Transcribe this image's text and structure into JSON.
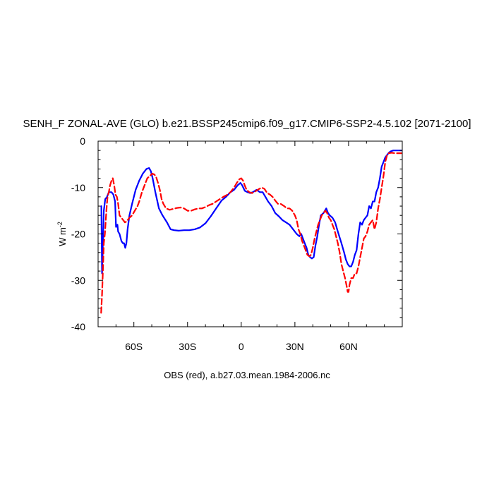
{
  "chart_data": {
    "type": "line",
    "title": "SENH_F ZONAL-AVE (GLO) b.e21.BSSP245cmip6.f09_g17.CMIP6-SSP2-4.5.102 [2071-2100]",
    "xlabel": "OBS (red), a.b27.03.mean.1984-2006.nc",
    "ylabel": "W m",
    "ylabel_sup": "-2",
    "xlim": [
      -80,
      90
    ],
    "ylim": [
      -40,
      0
    ],
    "xticks": [
      {
        "value": -60,
        "label": "60S"
      },
      {
        "value": -30,
        "label": "30S"
      },
      {
        "value": 0,
        "label": "0"
      },
      {
        "value": 30,
        "label": "30N"
      },
      {
        "value": 60,
        "label": "60N"
      }
    ],
    "yticks": [
      {
        "value": 0,
        "label": "0"
      },
      {
        "value": -10,
        "label": "-10"
      },
      {
        "value": -20,
        "label": "-20"
      },
      {
        "value": -30,
        "label": "-30"
      },
      {
        "value": -40,
        "label": "-40"
      }
    ],
    "grid": false,
    "series": [
      {
        "color": "#0000ff",
        "style": "solid",
        "points": [
          [
            -78.2,
            -14
          ],
          [
            -77.8,
            -28.5
          ],
          [
            -77.2,
            -20
          ],
          [
            -76.8,
            -15
          ],
          [
            -76,
            -12.5
          ],
          [
            -75,
            -12
          ],
          [
            -74,
            -11
          ],
          [
            -72.5,
            -11
          ],
          [
            -71.5,
            -11.5
          ],
          [
            -70.5,
            -13
          ],
          [
            -70,
            -18.5
          ],
          [
            -69.2,
            -18
          ],
          [
            -68.8,
            -19.5
          ],
          [
            -68,
            -20
          ],
          [
            -67,
            -21.5
          ],
          [
            -66.2,
            -22
          ],
          [
            -65.5,
            -22
          ],
          [
            -64.8,
            -23
          ],
          [
            -64.2,
            -22
          ],
          [
            -63.5,
            -19
          ],
          [
            -62.5,
            -16
          ],
          [
            -61,
            -13.5
          ],
          [
            -59,
            -10.5
          ],
          [
            -57,
            -8.5
          ],
          [
            -55,
            -7
          ],
          [
            -53,
            -6
          ],
          [
            -51.5,
            -5.8
          ],
          [
            -50.5,
            -6.5
          ],
          [
            -49.5,
            -8
          ],
          [
            -48,
            -11
          ],
          [
            -46,
            -14.5
          ],
          [
            -44,
            -16
          ],
          [
            -41.5,
            -17.5
          ],
          [
            -39.5,
            -19
          ],
          [
            -37.5,
            -19.2
          ],
          [
            -35,
            -19.3
          ],
          [
            -32,
            -19.2
          ],
          [
            -29,
            -19.2
          ],
          [
            -26,
            -19
          ],
          [
            -23,
            -18.6
          ],
          [
            -20,
            -17.7
          ],
          [
            -17,
            -16.2
          ],
          [
            -14,
            -14.5
          ],
          [
            -11,
            -12.8
          ],
          [
            -8.5,
            -12
          ],
          [
            -6,
            -11
          ],
          [
            -4,
            -10.5
          ],
          [
            -2,
            -9.5
          ],
          [
            -0.5,
            -9
          ],
          [
            0.5,
            -9.5
          ],
          [
            2,
            -10.7
          ],
          [
            3.5,
            -11
          ],
          [
            5,
            -11.2
          ],
          [
            6.5,
            -11
          ],
          [
            8.5,
            -10.5
          ],
          [
            10.5,
            -11
          ],
          [
            12,
            -11
          ],
          [
            13.5,
            -12
          ],
          [
            15,
            -13
          ],
          [
            17,
            -14
          ],
          [
            19,
            -15.5
          ],
          [
            21,
            -16.2
          ],
          [
            23,
            -17
          ],
          [
            25,
            -17.5
          ],
          [
            27,
            -18
          ],
          [
            29,
            -19
          ],
          [
            31,
            -20
          ],
          [
            32.5,
            -20.5
          ],
          [
            33.5,
            -20
          ],
          [
            34.5,
            -21
          ],
          [
            35.5,
            -22
          ],
          [
            36.5,
            -23
          ],
          [
            37.5,
            -24.5
          ],
          [
            38.5,
            -25
          ],
          [
            39.5,
            -25.3
          ],
          [
            40.5,
            -25
          ],
          [
            41.5,
            -22.5
          ],
          [
            42.5,
            -20.5
          ],
          [
            43.5,
            -18
          ],
          [
            44.5,
            -16
          ],
          [
            46,
            -15.5
          ],
          [
            47.5,
            -14.5
          ],
          [
            48.5,
            -15.5
          ],
          [
            49.5,
            -16
          ],
          [
            51,
            -16.5
          ],
          [
            52.5,
            -17.5
          ],
          [
            54,
            -19.5
          ],
          [
            56,
            -22
          ],
          [
            57.5,
            -24
          ],
          [
            58.5,
            -25.5
          ],
          [
            59.5,
            -26.5
          ],
          [
            60.5,
            -27
          ],
          [
            61.5,
            -27
          ],
          [
            62.5,
            -26
          ],
          [
            63.5,
            -24.5
          ],
          [
            64.5,
            -23.5
          ],
          [
            65.5,
            -20
          ],
          [
            66.5,
            -17.5
          ],
          [
            67.5,
            -18
          ],
          [
            68.5,
            -17
          ],
          [
            69.5,
            -16.5
          ],
          [
            70.5,
            -16
          ],
          [
            71.5,
            -14
          ],
          [
            72.5,
            -14.5
          ],
          [
            73.5,
            -13
          ],
          [
            74.5,
            -13
          ],
          [
            75.5,
            -11
          ],
          [
            76.5,
            -10
          ],
          [
            77.5,
            -8
          ],
          [
            78.5,
            -5.5
          ],
          [
            79.5,
            -4.5
          ],
          [
            80.5,
            -3.5
          ],
          [
            81.5,
            -3
          ],
          [
            82.5,
            -2.5
          ],
          [
            83.5,
            -2.2
          ],
          [
            85,
            -2
          ],
          [
            87,
            -2
          ],
          [
            89.5,
            -2
          ]
        ]
      },
      {
        "color": "#ff0000",
        "style": "dashed",
        "points": [
          [
            -78.3,
            -37
          ],
          [
            -77.8,
            -33
          ],
          [
            -77.3,
            -28
          ],
          [
            -76.8,
            -22
          ],
          [
            -76.2,
            -20
          ],
          [
            -75.7,
            -17
          ],
          [
            -75.2,
            -14
          ],
          [
            -74.7,
            -12
          ],
          [
            -74,
            -11
          ],
          [
            -73.3,
            -9.5
          ],
          [
            -72.5,
            -8.5
          ],
          [
            -71.8,
            -8
          ],
          [
            -71,
            -9.5
          ],
          [
            -70.3,
            -11.5
          ],
          [
            -69.5,
            -12
          ],
          [
            -68.8,
            -13.5
          ],
          [
            -68,
            -16
          ],
          [
            -67,
            -16.5
          ],
          [
            -66,
            -17
          ],
          [
            -65,
            -17.5
          ],
          [
            -64,
            -17.3
          ],
          [
            -62.5,
            -16.5
          ],
          [
            -61,
            -16
          ],
          [
            -59.5,
            -15
          ],
          [
            -58,
            -14
          ],
          [
            -57,
            -13
          ],
          [
            -55.5,
            -11
          ],
          [
            -54,
            -9.5
          ],
          [
            -52.5,
            -8
          ],
          [
            -51,
            -7.5
          ],
          [
            -49.8,
            -7
          ],
          [
            -48.5,
            -7.2
          ],
          [
            -47.5,
            -7.8
          ],
          [
            -46.5,
            -9
          ],
          [
            -45.5,
            -10.5
          ],
          [
            -44.5,
            -12.5
          ],
          [
            -43.5,
            -13.5
          ],
          [
            -42,
            -14.5
          ],
          [
            -40,
            -14.8
          ],
          [
            -38,
            -14.6
          ],
          [
            -36,
            -14.4
          ],
          [
            -34,
            -14.3
          ],
          [
            -32,
            -14.5
          ],
          [
            -30,
            -15
          ],
          [
            -28,
            -15
          ],
          [
            -26,
            -14.7
          ],
          [
            -24,
            -14.5
          ],
          [
            -22,
            -14.5
          ],
          [
            -20,
            -14.2
          ],
          [
            -18,
            -13.8
          ],
          [
            -16,
            -13.5
          ],
          [
            -14,
            -13
          ],
          [
            -12,
            -12.5
          ],
          [
            -10,
            -12
          ],
          [
            -8,
            -11.6
          ],
          [
            -6,
            -11
          ],
          [
            -4,
            -10
          ],
          [
            -2.5,
            -9
          ],
          [
            -1,
            -8.2
          ],
          [
            0,
            -8
          ],
          [
            1,
            -8.5
          ],
          [
            2,
            -9.6
          ],
          [
            3,
            -10.5
          ],
          [
            4.5,
            -11
          ],
          [
            6,
            -11.2
          ],
          [
            8,
            -10.8
          ],
          [
            10,
            -10.3
          ],
          [
            11.5,
            -10
          ],
          [
            13,
            -10.3
          ],
          [
            14.5,
            -11.2
          ],
          [
            16,
            -11.5
          ],
          [
            17.5,
            -12
          ],
          [
            19,
            -12.8
          ],
          [
            20.5,
            -13.5
          ],
          [
            22,
            -13.5
          ],
          [
            24,
            -14
          ],
          [
            25.5,
            -14.5
          ],
          [
            27,
            -14.5
          ],
          [
            28.5,
            -15
          ],
          [
            30,
            -16
          ],
          [
            31,
            -17
          ],
          [
            32,
            -19
          ],
          [
            33,
            -20
          ],
          [
            34,
            -21.5
          ],
          [
            35,
            -22.5
          ],
          [
            36,
            -23.5
          ],
          [
            37,
            -24.5
          ],
          [
            38,
            -24.8
          ],
          [
            39,
            -24.5
          ],
          [
            40,
            -23
          ],
          [
            41,
            -21
          ],
          [
            42,
            -19.5
          ],
          [
            43,
            -18
          ],
          [
            44,
            -17
          ],
          [
            45,
            -16
          ],
          [
            46,
            -15.5
          ],
          [
            47,
            -15
          ],
          [
            48,
            -15.5
          ],
          [
            49,
            -16.5
          ],
          [
            50,
            -17
          ],
          [
            51,
            -18
          ],
          [
            52,
            -19
          ],
          [
            53,
            -20.5
          ],
          [
            54,
            -22
          ],
          [
            55,
            -24
          ],
          [
            56,
            -26.5
          ],
          [
            57,
            -28
          ],
          [
            58,
            -29.5
          ],
          [
            58.8,
            -31
          ],
          [
            59.5,
            -32.5
          ],
          [
            60,
            -32.5
          ],
          [
            60.5,
            -31
          ],
          [
            61.5,
            -29.5
          ],
          [
            62.5,
            -29.5
          ],
          [
            63.5,
            -28.5
          ],
          [
            64.5,
            -28.5
          ],
          [
            65.5,
            -27
          ],
          [
            66.5,
            -25
          ],
          [
            67.5,
            -23
          ],
          [
            68.5,
            -21
          ],
          [
            69.5,
            -20.5
          ],
          [
            70.5,
            -19.5
          ],
          [
            71.5,
            -18
          ],
          [
            72.5,
            -17.5
          ],
          [
            73.5,
            -17
          ],
          [
            74.5,
            -19
          ],
          [
            75.5,
            -17.5
          ],
          [
            76.5,
            -14.5
          ],
          [
            77.5,
            -12.5
          ],
          [
            78.5,
            -10
          ],
          [
            79.5,
            -7.5
          ],
          [
            80.5,
            -4.5
          ],
          [
            81.5,
            -3
          ],
          [
            82.5,
            -2.6
          ],
          [
            84,
            -2.5
          ],
          [
            86,
            -2.6
          ],
          [
            88,
            -2.6
          ],
          [
            89.5,
            -2.6
          ]
        ]
      }
    ]
  }
}
